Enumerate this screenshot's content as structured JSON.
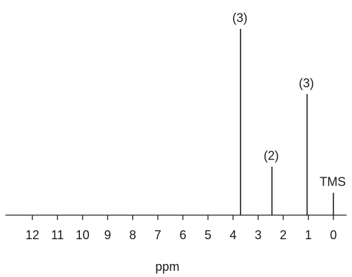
{
  "chart_data": {
    "type": "bar",
    "title": "",
    "xlabel": "ppm",
    "ylabel": "",
    "x_reversed": true,
    "xlim": [
      0,
      12
    ],
    "ylim": [
      0,
      1
    ],
    "grid": false,
    "x_ticks": [
      "12",
      "11",
      "10",
      "9",
      "8",
      "7",
      "6",
      "5",
      "4",
      "3",
      "2",
      "1",
      "0"
    ],
    "peaks": [
      {
        "x": 3.7,
        "height": 1.0,
        "label": "(3)"
      },
      {
        "x": 2.45,
        "height": 0.26,
        "label": "(2)"
      },
      {
        "x": 1.05,
        "height": 0.65,
        "label": "(3)"
      },
      {
        "x": 0.0,
        "height": 0.12,
        "label": "TMS"
      }
    ],
    "line_color": "#1a1a1a"
  }
}
